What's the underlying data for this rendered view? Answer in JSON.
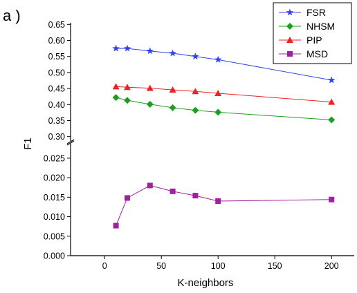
{
  "panel_label": "a )",
  "chart_data": {
    "type": "line",
    "title": "",
    "xlabel": "K-neighbors",
    "ylabel": "F1",
    "xlim": [
      -30,
      220
    ],
    "x_ticks": [
      0,
      50,
      100,
      150,
      200
    ],
    "x_tick_labels": [
      "0",
      "50",
      "100",
      "150",
      "200"
    ],
    "y_axis_break": true,
    "upper_panel": {
      "ylim": [
        0.295,
        0.655
      ],
      "y_ticks": [
        0.3,
        0.35,
        0.4,
        0.45,
        0.5,
        0.55,
        0.6,
        0.65
      ],
      "y_tick_labels": [
        "0.30",
        "0.35",
        "0.40",
        "0.45",
        "0.50",
        "0.55",
        "0.60",
        "0.65"
      ]
    },
    "lower_panel": {
      "ylim": [
        0.0,
        0.028
      ],
      "y_ticks": [
        0.0,
        0.005,
        0.01,
        0.015,
        0.02,
        0.025
      ],
      "y_tick_labels": [
        "0.000",
        "0.005",
        "0.010",
        "0.015",
        "0.020",
        "0.025"
      ]
    },
    "legend_position": "top-right",
    "x": [
      10,
      20,
      40,
      60,
      80,
      100,
      200
    ],
    "series": [
      {
        "name": "FSR",
        "panel": "upper",
        "color": "#3344ee",
        "marker": "star",
        "values": [
          0.575,
          0.575,
          0.567,
          0.56,
          0.55,
          0.54,
          0.476
        ]
      },
      {
        "name": "NHSM",
        "panel": "upper",
        "color": "#1e9e1e",
        "marker": "diamond",
        "values": [
          0.422,
          0.413,
          0.401,
          0.39,
          0.382,
          0.376,
          0.352
        ]
      },
      {
        "name": "PIP",
        "panel": "upper",
        "color": "#ee2222",
        "marker": "triangle",
        "values": [
          0.456,
          0.454,
          0.451,
          0.446,
          0.441,
          0.435,
          0.408
        ]
      },
      {
        "name": "MSD",
        "panel": "lower",
        "color": "#a020a0",
        "marker": "square",
        "values": [
          0.0077,
          0.0148,
          0.018,
          0.0165,
          0.0154,
          0.014,
          0.0144
        ]
      }
    ]
  }
}
